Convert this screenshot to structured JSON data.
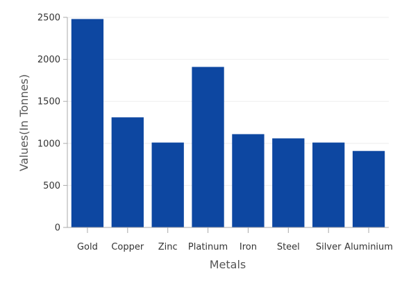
{
  "chart_data": {
    "type": "bar",
    "title": "",
    "xlabel": "Metals",
    "ylabel": "Values(In Tonnes)",
    "categories": [
      "Gold",
      "Copper",
      "Zinc",
      "Platinum",
      "Iron",
      "Steel",
      "Silver",
      "Aluminium"
    ],
    "values": [
      2480,
      1310,
      1010,
      1910,
      1110,
      1060,
      1010,
      910
    ],
    "ylim": [
      0,
      2500
    ],
    "yticks": [
      0,
      500,
      1000,
      1500,
      2000,
      2500
    ],
    "grid": true,
    "legend": "none",
    "bar_color": "#0D47A1",
    "grid_color": "#EEEEEE",
    "axis_color": "#AAAAAA"
  }
}
